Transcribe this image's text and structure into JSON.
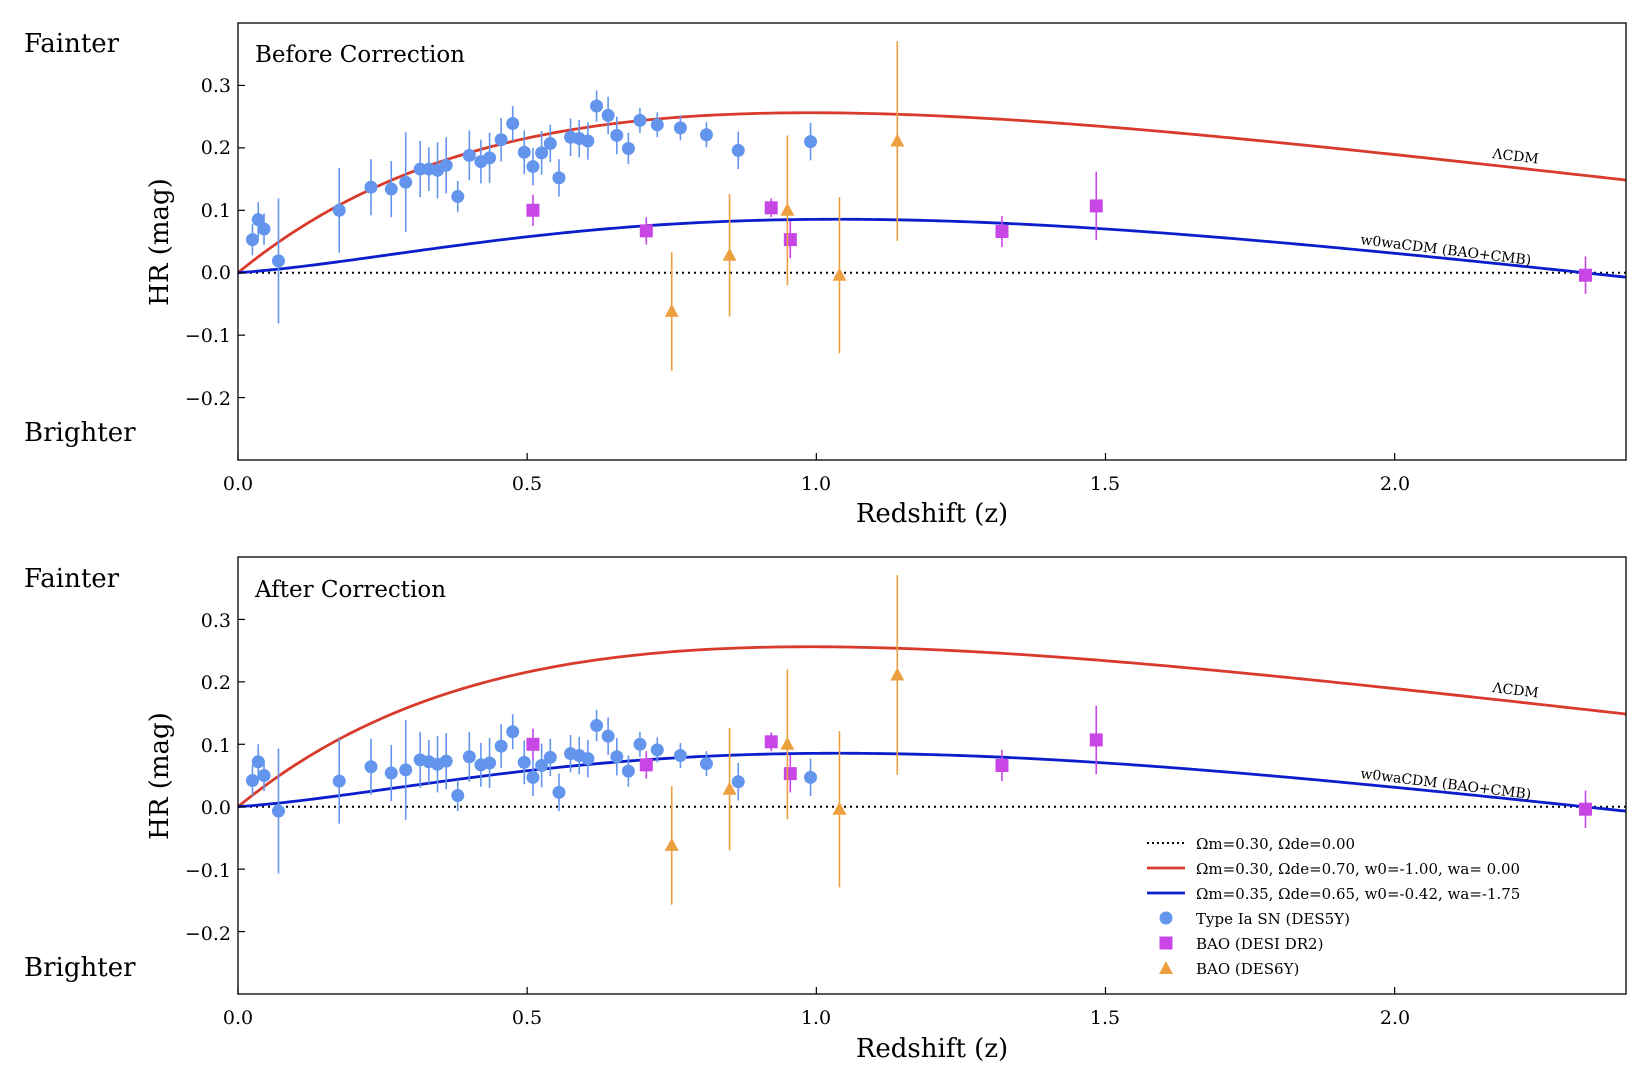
{
  "colors": {
    "sn": "#6495ED",
    "bao_desi": "#C846E6",
    "bao_des6y": "#EDA040",
    "lcdm": "#D83A2C",
    "w0wa": "#0A1ECC",
    "flat": "#000000"
  },
  "side_labels": {
    "fainter": "Fainter",
    "brighter": "Brighter"
  },
  "legend": {
    "flat": "Ωm=0.30, Ωde=0.00",
    "lcdm": "Ωm=0.30, Ωde=0.70, w0=-1.00, wa= 0.00",
    "w0wa": "Ωm=0.35, Ωde=0.65, w0=-0.42, wa=-1.75",
    "sn": "Type Ia SN (DES5Y)",
    "bao_desi": "BAO (DESI DR2)",
    "bao_des6y": "BAO (DES6Y)"
  },
  "chart_data": [
    {
      "type": "scatter",
      "title": "Before Correction",
      "xlabel": "Redshift (z)",
      "ylabel": "HR (mag)",
      "xlim": [
        0.0,
        2.4
      ],
      "ylim": [
        -0.3,
        0.4
      ],
      "xticks": [
        "0.0",
        "0.5",
        "1.0",
        "1.5",
        "2.0"
      ],
      "yticks": [
        "−0.2",
        "−0.1",
        "0.0",
        "0.1",
        "0.2",
        "0.3"
      ],
      "curve_labels": {
        "lcdm": "ΛCDM",
        "w0wa": "w0waCDM (BAO+CMB)"
      },
      "series": [
        {
          "name": "Type Ia SN (DES5Y)",
          "points": [
            {
              "x": 0.025,
              "y": 0.053,
              "err": 0.025
            },
            {
              "x": 0.035,
              "y": 0.085,
              "err": 0.028
            },
            {
              "x": 0.045,
              "y": 0.07,
              "err": 0.025
            },
            {
              "x": 0.07,
              "y": 0.019,
              "err": 0.1
            },
            {
              "x": 0.175,
              "y": 0.1,
              "err": 0.068
            },
            {
              "x": 0.23,
              "y": 0.137,
              "err": 0.045
            },
            {
              "x": 0.265,
              "y": 0.134,
              "err": 0.045
            },
            {
              "x": 0.29,
              "y": 0.145,
              "err": 0.08
            },
            {
              "x": 0.315,
              "y": 0.166,
              "err": 0.045
            },
            {
              "x": 0.33,
              "y": 0.166,
              "err": 0.035
            },
            {
              "x": 0.345,
              "y": 0.164,
              "err": 0.045
            },
            {
              "x": 0.36,
              "y": 0.172,
              "err": 0.045
            },
            {
              "x": 0.38,
              "y": 0.122,
              "err": 0.025
            },
            {
              "x": 0.4,
              "y": 0.188,
              "err": 0.04
            },
            {
              "x": 0.42,
              "y": 0.178,
              "err": 0.035
            },
            {
              "x": 0.435,
              "y": 0.184,
              "err": 0.04
            },
            {
              "x": 0.455,
              "y": 0.213,
              "err": 0.035
            },
            {
              "x": 0.475,
              "y": 0.239,
              "err": 0.028
            },
            {
              "x": 0.495,
              "y": 0.193,
              "err": 0.035
            },
            {
              "x": 0.51,
              "y": 0.17,
              "err": 0.03
            },
            {
              "x": 0.525,
              "y": 0.192,
              "err": 0.035
            },
            {
              "x": 0.54,
              "y": 0.207,
              "err": 0.03
            },
            {
              "x": 0.555,
              "y": 0.152,
              "err": 0.03
            },
            {
              "x": 0.575,
              "y": 0.217,
              "err": 0.03
            },
            {
              "x": 0.59,
              "y": 0.215,
              "err": 0.03
            },
            {
              "x": 0.605,
              "y": 0.211,
              "err": 0.03
            },
            {
              "x": 0.62,
              "y": 0.267,
              "err": 0.025
            },
            {
              "x": 0.64,
              "y": 0.252,
              "err": 0.03
            },
            {
              "x": 0.655,
              "y": 0.22,
              "err": 0.03
            },
            {
              "x": 0.675,
              "y": 0.199,
              "err": 0.025
            },
            {
              "x": 0.695,
              "y": 0.244,
              "err": 0.02
            },
            {
              "x": 0.725,
              "y": 0.237,
              "err": 0.02
            },
            {
              "x": 0.765,
              "y": 0.232,
              "err": 0.02
            },
            {
              "x": 0.81,
              "y": 0.221,
              "err": 0.02
            },
            {
              "x": 0.865,
              "y": 0.196,
              "err": 0.03
            },
            {
              "x": 0.99,
              "y": 0.21,
              "err": 0.03
            }
          ]
        },
        {
          "name": "BAO (DESI DR2)",
          "points": [
            {
              "x": 0.51,
              "y": 0.1,
              "err": 0.025
            },
            {
              "x": 0.706,
              "y": 0.067,
              "err": 0.022
            },
            {
              "x": 0.922,
              "y": 0.104,
              "err": 0.015
            },
            {
              "x": 0.955,
              "y": 0.053,
              "err": 0.03
            },
            {
              "x": 1.321,
              "y": 0.066,
              "err": 0.025
            },
            {
              "x": 1.484,
              "y": 0.107,
              "err": 0.055
            },
            {
              "x": 2.33,
              "y": -0.004,
              "err": 0.03
            }
          ]
        },
        {
          "name": "BAO (DES6Y)",
          "points": [
            {
              "x": 0.75,
              "y": -0.062,
              "err": 0.095
            },
            {
              "x": 0.85,
              "y": 0.028,
              "err": 0.098
            },
            {
              "x": 0.95,
              "y": 0.1,
              "err": 0.12
            },
            {
              "x": 1.04,
              "y": -0.004,
              "err": 0.125
            },
            {
              "x": 1.14,
              "y": 0.211,
              "err": 0.16
            }
          ]
        }
      ]
    },
    {
      "type": "scatter",
      "title": "After Correction",
      "xlabel": "Redshift (z)",
      "ylabel": "HR (mag)",
      "xlim": [
        0.0,
        2.4
      ],
      "ylim": [
        -0.3,
        0.4
      ],
      "xticks": [
        "0.0",
        "0.5",
        "1.0",
        "1.5",
        "2.0"
      ],
      "yticks": [
        "−0.2",
        "−0.1",
        "0.0",
        "0.1",
        "0.2",
        "0.3"
      ],
      "curve_labels": {
        "lcdm": "ΛCDM",
        "w0wa": "w0waCDM (BAO+CMB)"
      },
      "series": [
        {
          "name": "Type Ia SN (DES5Y)",
          "points": [
            {
              "x": 0.025,
              "y": 0.042,
              "err": 0.025
            },
            {
              "x": 0.035,
              "y": 0.072,
              "err": 0.028
            },
            {
              "x": 0.045,
              "y": 0.05,
              "err": 0.025
            },
            {
              "x": 0.07,
              "y": -0.007,
              "err": 0.1
            },
            {
              "x": 0.175,
              "y": 0.041,
              "err": 0.068
            },
            {
              "x": 0.23,
              "y": 0.064,
              "err": 0.045
            },
            {
              "x": 0.265,
              "y": 0.054,
              "err": 0.045
            },
            {
              "x": 0.29,
              "y": 0.059,
              "err": 0.08
            },
            {
              "x": 0.315,
              "y": 0.075,
              "err": 0.045
            },
            {
              "x": 0.33,
              "y": 0.072,
              "err": 0.035
            },
            {
              "x": 0.345,
              "y": 0.068,
              "err": 0.045
            },
            {
              "x": 0.36,
              "y": 0.073,
              "err": 0.045
            },
            {
              "x": 0.38,
              "y": 0.018,
              "err": 0.025
            },
            {
              "x": 0.4,
              "y": 0.08,
              "err": 0.04
            },
            {
              "x": 0.42,
              "y": 0.067,
              "err": 0.035
            },
            {
              "x": 0.435,
              "y": 0.07,
              "err": 0.04
            },
            {
              "x": 0.455,
              "y": 0.097,
              "err": 0.035
            },
            {
              "x": 0.475,
              "y": 0.12,
              "err": 0.028
            },
            {
              "x": 0.495,
              "y": 0.071,
              "err": 0.035
            },
            {
              "x": 0.51,
              "y": 0.047,
              "err": 0.03
            },
            {
              "x": 0.525,
              "y": 0.066,
              "err": 0.035
            },
            {
              "x": 0.54,
              "y": 0.079,
              "err": 0.03
            },
            {
              "x": 0.555,
              "y": 0.023,
              "err": 0.03
            },
            {
              "x": 0.575,
              "y": 0.085,
              "err": 0.03
            },
            {
              "x": 0.59,
              "y": 0.082,
              "err": 0.03
            },
            {
              "x": 0.605,
              "y": 0.077,
              "err": 0.03
            },
            {
              "x": 0.62,
              "y": 0.13,
              "err": 0.025
            },
            {
              "x": 0.64,
              "y": 0.113,
              "err": 0.03
            },
            {
              "x": 0.655,
              "y": 0.08,
              "err": 0.03
            },
            {
              "x": 0.675,
              "y": 0.057,
              "err": 0.025
            },
            {
              "x": 0.695,
              "y": 0.1,
              "err": 0.02
            },
            {
              "x": 0.725,
              "y": 0.091,
              "err": 0.02
            },
            {
              "x": 0.765,
              "y": 0.082,
              "err": 0.02
            },
            {
              "x": 0.81,
              "y": 0.069,
              "err": 0.02
            },
            {
              "x": 0.865,
              "y": 0.04,
              "err": 0.03
            },
            {
              "x": 0.99,
              "y": 0.047,
              "err": 0.03
            }
          ]
        },
        {
          "name": "BAO (DESI DR2)",
          "points": [
            {
              "x": 0.51,
              "y": 0.1,
              "err": 0.025
            },
            {
              "x": 0.706,
              "y": 0.067,
              "err": 0.022
            },
            {
              "x": 0.922,
              "y": 0.104,
              "err": 0.015
            },
            {
              "x": 0.955,
              "y": 0.053,
              "err": 0.03
            },
            {
              "x": 1.321,
              "y": 0.066,
              "err": 0.025
            },
            {
              "x": 1.484,
              "y": 0.107,
              "err": 0.055
            },
            {
              "x": 2.33,
              "y": -0.004,
              "err": 0.03
            }
          ]
        },
        {
          "name": "BAO (DES6Y)",
          "points": [
            {
              "x": 0.75,
              "y": -0.062,
              "err": 0.095
            },
            {
              "x": 0.85,
              "y": 0.028,
              "err": 0.098
            },
            {
              "x": 0.95,
              "y": 0.1,
              "err": 0.12
            },
            {
              "x": 1.04,
              "y": -0.004,
              "err": 0.125
            },
            {
              "x": 1.14,
              "y": 0.211,
              "err": 0.16
            }
          ]
        }
      ],
      "legend": {
        "placement": "bottom-right"
      }
    }
  ]
}
